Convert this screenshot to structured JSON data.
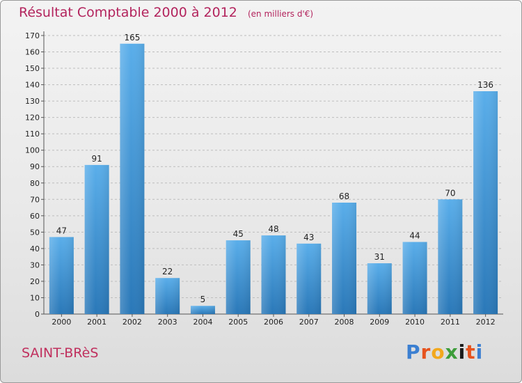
{
  "chart_data": {
    "type": "bar",
    "title": "Résultat Comptable 2000 à 2012",
    "unit": "(en milliers d'€)",
    "categories": [
      "2000",
      "2001",
      "2002",
      "2003",
      "2004",
      "2005",
      "2006",
      "2007",
      "2008",
      "2009",
      "2010",
      "2011",
      "2012"
    ],
    "values": [
      47,
      91,
      165,
      22,
      5,
      45,
      48,
      43,
      68,
      31,
      44,
      70,
      136
    ],
    "ylim": [
      0,
      170
    ],
    "ytick_step": 10,
    "grid": true,
    "bar_color_top": "#5aaeea",
    "bar_color_bottom": "#2a78b8"
  },
  "commune": "SAINT-BRèS",
  "logo": {
    "letters": [
      "P",
      "r",
      "o",
      "x",
      "i",
      "t",
      "i"
    ],
    "colors": [
      "#3b7fd1",
      "#e6531e",
      "#f2a81d",
      "#3d9d3a",
      "#1a1a1a",
      "#e6531e",
      "#3b7fd1"
    ]
  }
}
